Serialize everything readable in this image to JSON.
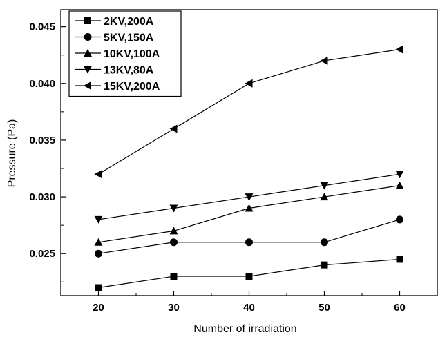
{
  "chart_data": {
    "type": "line",
    "title": "",
    "xlabel": "Number of irradiation",
    "ylabel": "Pressure (Pa)",
    "xlim": [
      15,
      65
    ],
    "ylim": [
      0.0213,
      0.0465
    ],
    "x_ticks": [
      20,
      30,
      40,
      50,
      60
    ],
    "x_tick_labels": [
      "20",
      "30",
      "40",
      "50",
      "60"
    ],
    "y_ticks": [
      0.025,
      0.03,
      0.035,
      0.04,
      0.045
    ],
    "y_tick_labels": [
      "0.025",
      "0.030",
      "0.035",
      "0.040",
      "0.045"
    ],
    "grid": false,
    "legend": "top-left",
    "x": [
      20,
      30,
      40,
      50,
      60
    ],
    "series": [
      {
        "name": "2KV,200A",
        "marker": "square",
        "values": [
          0.022,
          0.023,
          0.023,
          0.024,
          0.0245
        ]
      },
      {
        "name": "5KV,150A",
        "marker": "circle",
        "values": [
          0.025,
          0.026,
          0.026,
          0.026,
          0.028
        ]
      },
      {
        "name": "10KV,100A",
        "marker": "triangle-up",
        "values": [
          0.026,
          0.027,
          0.029,
          0.03,
          0.031
        ]
      },
      {
        "name": "13KV,80A",
        "marker": "triangle-down",
        "values": [
          0.028,
          0.029,
          0.03,
          0.031,
          0.032
        ]
      },
      {
        "name": "15KV,200A",
        "marker": "triangle-left",
        "values": [
          0.032,
          0.036,
          0.04,
          0.042,
          0.043
        ]
      }
    ],
    "colors": {
      "line": "#000000",
      "marker": "#000000",
      "background": "#ffffff"
    }
  }
}
